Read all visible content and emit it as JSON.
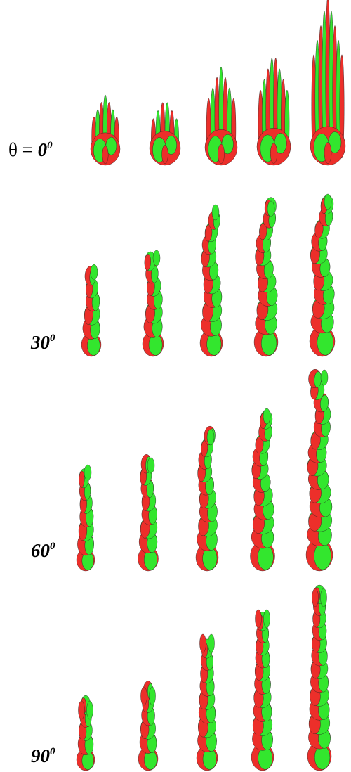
{
  "rows": [
    {
      "prefix": "θ = ",
      "value": "0",
      "sup": "0"
    },
    {
      "value": "30",
      "sup": "0"
    },
    {
      "value": "60",
      "sup": "0"
    },
    {
      "value": "90",
      "sup": "0"
    }
  ]
}
